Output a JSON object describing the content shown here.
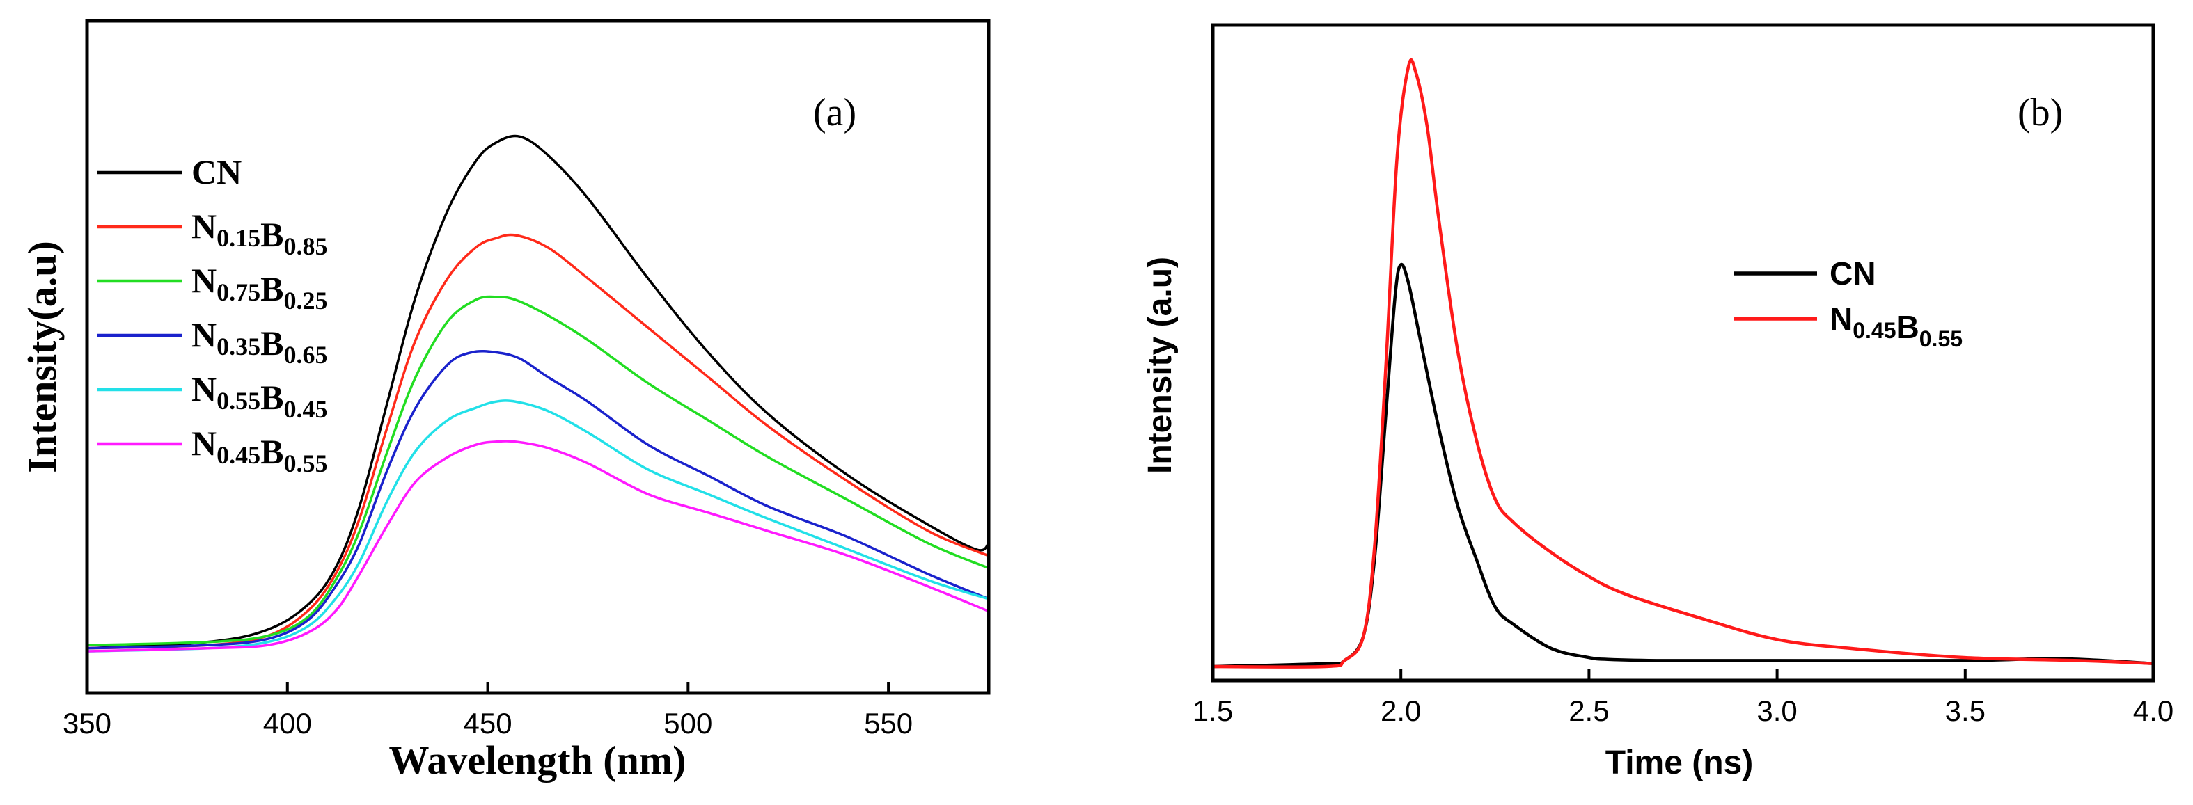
{
  "chart_data": [
    {
      "type": "line",
      "panel_label": "(a)",
      "xlabel": "Wavelength (nm)",
      "ylabel": "Intensity(a.u)",
      "xlim": [
        350,
        575
      ],
      "ylim": [
        0,
        100
      ],
      "xticks": [
        "350",
        "400",
        "450",
        "500",
        "550"
      ],
      "xtick_values": [
        350,
        400,
        450,
        500,
        550
      ],
      "legend_position": "top-left",
      "series": [
        {
          "name": "CN",
          "name_main": "CN",
          "parts": [],
          "color": "#000000",
          "x": [
            350,
            380,
            395,
            405,
            412,
            418,
            425,
            432,
            440,
            447,
            452,
            458,
            465,
            475,
            490,
            505,
            520,
            540,
            560,
            572,
            575
          ],
          "y": [
            5,
            6,
            8,
            12,
            18,
            28,
            45,
            62,
            76,
            84,
            87,
            88,
            85,
            78,
            65,
            53,
            43,
            33,
            25,
            21,
            22
          ]
        },
        {
          "name": "N0.15B0.85",
          "name_main": "",
          "parts": [
            {
              "b": "N",
              "s": "0.15"
            },
            {
              "b": "B",
              "s": "0.85"
            }
          ],
          "color": "#ff2a1a",
          "x": [
            350,
            380,
            395,
            405,
            412,
            418,
            425,
            432,
            440,
            447,
            452,
            457,
            465,
            475,
            490,
            505,
            520,
            540,
            560,
            575
          ],
          "y": [
            5,
            5.5,
            7,
            11,
            17,
            26,
            41,
            55,
            65,
            70,
            71.5,
            72,
            70,
            65,
            57,
            49,
            41,
            32,
            24,
            20
          ]
        },
        {
          "name": "N0.75B0.25",
          "name_main": "",
          "parts": [
            {
              "b": "N",
              "s": "0.75"
            },
            {
              "b": "B",
              "s": "0.25"
            }
          ],
          "color": "#22dd22",
          "x": [
            350,
            380,
            395,
            405,
            412,
            418,
            425,
            432,
            440,
            447,
            452,
            457,
            465,
            475,
            490,
            505,
            520,
            540,
            560,
            575
          ],
          "y": [
            5.5,
            6,
            7,
            10,
            16,
            24,
            37,
            49,
            58,
            61.5,
            62,
            61.5,
            59,
            55,
            48,
            42,
            36,
            29,
            22,
            18
          ]
        },
        {
          "name": "N0.35B0.65",
          "name_main": "",
          "parts": [
            {
              "b": "N",
              "s": "0.35"
            },
            {
              "b": "B",
              "s": "0.65"
            }
          ],
          "color": "#1a22cc",
          "x": [
            350,
            380,
            395,
            405,
            412,
            418,
            425,
            432,
            440,
            446,
            452,
            458,
            465,
            475,
            490,
            505,
            520,
            540,
            560,
            575
          ],
          "y": [
            5,
            5.5,
            6.5,
            9.5,
            15,
            22,
            34,
            44,
            51,
            53,
            53,
            52,
            49,
            45,
            38,
            33,
            28,
            23,
            17,
            13
          ]
        },
        {
          "name": "N0.55B0.45",
          "name_main": "",
          "parts": [
            {
              "b": "N",
              "s": "0.55"
            },
            {
              "b": "B",
              "s": "0.45"
            }
          ],
          "color": "#22e0e8",
          "x": [
            350,
            380,
            395,
            405,
            412,
            418,
            425,
            432,
            440,
            447,
            452,
            457,
            465,
            475,
            490,
            505,
            520,
            540,
            560,
            575
          ],
          "y": [
            4.5,
            5,
            6,
            8.5,
            13,
            19,
            29,
            37,
            42,
            44,
            45,
            45,
            43.5,
            40,
            34,
            30,
            26,
            21,
            16,
            13
          ]
        },
        {
          "name": "N0.45B0.55",
          "name_main": "",
          "parts": [
            {
              "b": "N",
              "s": "0.45"
            },
            {
              "b": "B",
              "s": "0.55"
            }
          ],
          "color": "#ff1aff",
          "x": [
            350,
            380,
            395,
            405,
            412,
            418,
            425,
            432,
            440,
            447,
            452,
            457,
            465,
            475,
            490,
            505,
            520,
            540,
            560,
            575
          ],
          "y": [
            4.5,
            5,
            5.5,
            7.5,
            11,
            17,
            25,
            32,
            36,
            38,
            38.5,
            38.5,
            37.5,
            35,
            30,
            27,
            24,
            20,
            15,
            11
          ]
        }
      ]
    },
    {
      "type": "line",
      "panel_label": "(b)",
      "xlabel": "Time (ns)",
      "ylabel": "Intensity (a.u)",
      "xlim": [
        1.5,
        4.0
      ],
      "ylim": [
        0,
        100
      ],
      "xticks": [
        "1.5",
        "2.0",
        "2.5",
        "3.0",
        "3.5",
        "4.0"
      ],
      "xtick_values": [
        1.5,
        2.0,
        2.5,
        3.0,
        3.5,
        4.0
      ],
      "legend_position": "center-right",
      "series": [
        {
          "name": "CN",
          "name_main": "CN",
          "parts": [],
          "color": "#000000",
          "x": [
            1.5,
            1.8,
            1.85,
            1.9,
            1.93,
            1.96,
            1.985,
            2.0,
            2.02,
            2.05,
            2.1,
            2.15,
            2.2,
            2.25,
            2.3,
            2.4,
            2.5,
            2.55,
            2.7,
            3.0,
            3.5,
            3.75,
            4.0
          ],
          "y": [
            0,
            0.5,
            1,
            5,
            18,
            42,
            62,
            67,
            64,
            55,
            40,
            27,
            18,
            10,
            7,
            3,
            1.5,
            1.2,
            1,
            1,
            1,
            1.3,
            0.5
          ]
        },
        {
          "name": "N0.45B0.55",
          "name_main": "",
          "parts": [
            {
              "b": "N",
              "s": "0.45"
            },
            {
              "b": "B",
              "s": "0.55"
            }
          ],
          "color": "#ff1a1a",
          "x": [
            1.5,
            1.8,
            1.85,
            1.9,
            1.93,
            1.96,
            1.99,
            2.02,
            2.04,
            2.07,
            2.1,
            2.15,
            2.2,
            2.25,
            2.3,
            2.4,
            2.5,
            2.6,
            2.8,
            3.0,
            3.2,
            3.5,
            3.8,
            4.0
          ],
          "y": [
            0,
            0,
            1,
            5,
            20,
            50,
            85,
            100,
            99,
            90,
            75,
            53,
            38,
            28,
            24,
            19,
            15,
            12,
            8,
            4.5,
            3,
            1.5,
            1,
            0.5
          ]
        }
      ]
    }
  ]
}
